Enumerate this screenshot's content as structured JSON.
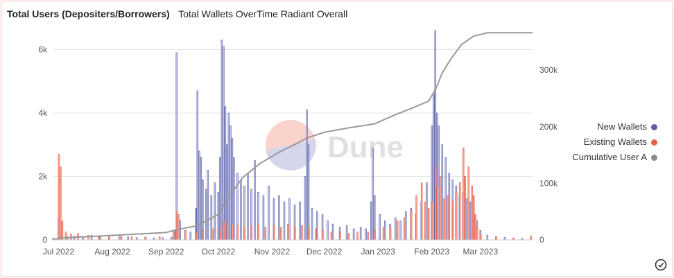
{
  "header": {
    "title": "Total Users (Depositers/Borrowers)",
    "subtitle": "Total Wallets OverTime Radiant Overall"
  },
  "watermark": "Dune",
  "colors": {
    "new_wallets": "#5a5fa8",
    "new_wallets_fill": "#c4c6e6",
    "existing_wallets": "#e8604a",
    "existing_wallets_fill": "#f5a898",
    "cumulative": "#999999",
    "grid": "#e6e6e6",
    "axis_text": "#555555"
  },
  "chart_data": {
    "type": "bar",
    "x_ticks": [
      "Jul 2022",
      "Aug 2022",
      "Sep 2022",
      "Oct 2022",
      "Nov 2022",
      "Dec 2022",
      "Jan 2023",
      "Feb 2023",
      "Mar 2023"
    ],
    "y_left_ticks": [
      "0",
      "2k",
      "4k",
      "6k"
    ],
    "y_left_range": [
      0,
      6600
    ],
    "y_right_ticks": [
      "0",
      "100k",
      "200k",
      "300k"
    ],
    "y_right_range": [
      0,
      370000
    ],
    "legend_position": "right",
    "grid": true,
    "date_range": [
      "2022-06-28",
      "2023-03-31"
    ],
    "new_wallets": [
      [
        "2022-06-28",
        60
      ],
      [
        "2022-07-01",
        700
      ],
      [
        "2022-07-03",
        120
      ],
      [
        "2022-07-06",
        100
      ],
      [
        "2022-07-10",
        120
      ],
      [
        "2022-07-15",
        90
      ],
      [
        "2022-07-20",
        150
      ],
      [
        "2022-07-25",
        90
      ],
      [
        "2022-07-30",
        80
      ],
      [
        "2022-08-05",
        110
      ],
      [
        "2022-08-10",
        90
      ],
      [
        "2022-08-15",
        70
      ],
      [
        "2022-08-20",
        80
      ],
      [
        "2022-08-25",
        60
      ],
      [
        "2022-08-30",
        70
      ],
      [
        "2022-09-04",
        80
      ],
      [
        "2022-09-06",
        300
      ],
      [
        "2022-09-07",
        5900
      ],
      [
        "2022-09-08",
        800
      ],
      [
        "2022-09-09",
        600
      ],
      [
        "2022-09-12",
        300
      ],
      [
        "2022-09-15",
        250
      ],
      [
        "2022-09-18",
        1000
      ],
      [
        "2022-09-19",
        4700
      ],
      [
        "2022-09-20",
        2800
      ],
      [
        "2022-09-21",
        2600
      ],
      [
        "2022-09-22",
        1900
      ],
      [
        "2022-09-24",
        1600
      ],
      [
        "2022-09-25",
        2200
      ],
      [
        "2022-09-27",
        1400
      ],
      [
        "2022-09-29",
        1800
      ],
      [
        "2022-10-01",
        1500
      ],
      [
        "2022-10-02",
        2600
      ],
      [
        "2022-10-03",
        6300
      ],
      [
        "2022-10-04",
        6100
      ],
      [
        "2022-10-05",
        4200
      ],
      [
        "2022-10-06",
        3000
      ],
      [
        "2022-10-07",
        4000
      ],
      [
        "2022-10-08",
        3600
      ],
      [
        "2022-10-09",
        3200
      ],
      [
        "2022-10-10",
        2600
      ],
      [
        "2022-10-12",
        2100
      ],
      [
        "2022-10-14",
        1900
      ],
      [
        "2022-10-16",
        1700
      ],
      [
        "2022-10-18",
        2100
      ],
      [
        "2022-10-20",
        1600
      ],
      [
        "2022-10-22",
        2500
      ],
      [
        "2022-10-24",
        1500
      ],
      [
        "2022-10-27",
        1400
      ],
      [
        "2022-10-30",
        1700
      ],
      [
        "2022-11-02",
        1300
      ],
      [
        "2022-11-05",
        1400
      ],
      [
        "2022-11-08",
        1200
      ],
      [
        "2022-11-11",
        1300
      ],
      [
        "2022-11-14",
        1100
      ],
      [
        "2022-11-17",
        1200
      ],
      [
        "2022-11-20",
        2000
      ],
      [
        "2022-11-21",
        4100
      ],
      [
        "2022-11-22",
        3000
      ],
      [
        "2022-11-24",
        1000
      ],
      [
        "2022-11-27",
        900
      ],
      [
        "2022-11-30",
        800
      ],
      [
        "2022-12-03",
        600
      ],
      [
        "2022-12-06",
        500
      ],
      [
        "2022-12-10",
        400
      ],
      [
        "2022-12-14",
        450
      ],
      [
        "2022-12-18",
        350
      ],
      [
        "2022-12-22",
        400
      ],
      [
        "2022-12-25",
        350
      ],
      [
        "2022-12-28",
        1200
      ],
      [
        "2022-12-29",
        2900
      ],
      [
        "2022-12-30",
        1400
      ],
      [
        "2023-01-02",
        800
      ],
      [
        "2023-01-05",
        600
      ],
      [
        "2023-01-08",
        500
      ],
      [
        "2023-01-11",
        700
      ],
      [
        "2023-01-14",
        600
      ],
      [
        "2023-01-17",
        900
      ],
      [
        "2023-01-20",
        1000
      ],
      [
        "2023-01-23",
        800
      ],
      [
        "2023-01-26",
        1200
      ],
      [
        "2023-01-29",
        1800
      ],
      [
        "2023-02-01",
        3600
      ],
      [
        "2023-02-02",
        4600
      ],
      [
        "2023-02-03",
        6600
      ],
      [
        "2023-02-04",
        4000
      ],
      [
        "2023-02-05",
        3600
      ],
      [
        "2023-02-07",
        3000
      ],
      [
        "2023-02-09",
        2600
      ],
      [
        "2023-02-11",
        2100
      ],
      [
        "2023-02-13",
        1900
      ],
      [
        "2023-02-15",
        1700
      ],
      [
        "2023-02-17",
        1400
      ],
      [
        "2023-02-19",
        1500
      ],
      [
        "2023-02-21",
        1300
      ],
      [
        "2023-02-23",
        1200
      ],
      [
        "2023-02-25",
        1100
      ],
      [
        "2023-02-27",
        600
      ],
      [
        "2023-03-01",
        300
      ],
      [
        "2023-03-05",
        150
      ],
      [
        "2023-03-10",
        100
      ],
      [
        "2023-03-15",
        80
      ],
      [
        "2023-03-20",
        60
      ],
      [
        "2023-03-25",
        50
      ],
      [
        "2023-03-30",
        40
      ]
    ],
    "existing_wallets": [
      [
        "2022-07-01",
        2700
      ],
      [
        "2022-07-02",
        2300
      ],
      [
        "2022-07-03",
        600
      ],
      [
        "2022-07-05",
        250
      ],
      [
        "2022-07-08",
        180
      ],
      [
        "2022-07-12",
        200
      ],
      [
        "2022-07-18",
        150
      ],
      [
        "2022-07-24",
        120
      ],
      [
        "2022-07-30",
        100
      ],
      [
        "2022-08-06",
        110
      ],
      [
        "2022-08-12",
        100
      ],
      [
        "2022-08-20",
        90
      ],
      [
        "2022-08-28",
        100
      ],
      [
        "2022-09-05",
        300
      ],
      [
        "2022-09-07",
        900
      ],
      [
        "2022-09-08",
        700
      ],
      [
        "2022-09-12",
        300
      ],
      [
        "2022-09-18",
        250
      ],
      [
        "2022-09-22",
        300
      ],
      [
        "2022-09-28",
        350
      ],
      [
        "2022-10-02",
        400
      ],
      [
        "2022-10-04",
        600
      ],
      [
        "2022-10-06",
        500
      ],
      [
        "2022-10-09",
        500
      ],
      [
        "2022-10-12",
        450
      ],
      [
        "2022-10-16",
        400
      ],
      [
        "2022-10-20",
        450
      ],
      [
        "2022-10-24",
        500
      ],
      [
        "2022-10-28",
        400
      ],
      [
        "2022-11-02",
        450
      ],
      [
        "2022-11-06",
        400
      ],
      [
        "2022-11-10",
        500
      ],
      [
        "2022-11-14",
        400
      ],
      [
        "2022-11-18",
        450
      ],
      [
        "2022-11-22",
        400
      ],
      [
        "2022-11-26",
        350
      ],
      [
        "2022-11-30",
        300
      ],
      [
        "2022-12-05",
        250
      ],
      [
        "2022-12-10",
        250
      ],
      [
        "2022-12-15",
        200
      ],
      [
        "2022-12-20",
        250
      ],
      [
        "2022-12-26",
        250
      ],
      [
        "2022-12-30",
        300
      ],
      [
        "2023-01-04",
        400
      ],
      [
        "2023-01-08",
        400
      ],
      [
        "2023-01-12",
        600
      ],
      [
        "2023-01-16",
        700
      ],
      [
        "2023-01-20",
        900
      ],
      [
        "2023-01-23",
        1400
      ],
      [
        "2023-01-26",
        1800
      ],
      [
        "2023-01-28",
        1200
      ],
      [
        "2023-01-30",
        1000
      ],
      [
        "2023-02-01",
        1200
      ],
      [
        "2023-02-03",
        2300
      ],
      [
        "2023-02-04",
        1700
      ],
      [
        "2023-02-06",
        2000
      ],
      [
        "2023-02-08",
        1300
      ],
      [
        "2023-02-10",
        1400
      ],
      [
        "2023-02-13",
        1200
      ],
      [
        "2023-02-15",
        1500
      ],
      [
        "2023-02-17",
        1800
      ],
      [
        "2023-02-19",
        2900
      ],
      [
        "2023-02-20",
        2000
      ],
      [
        "2023-02-22",
        2300
      ],
      [
        "2023-02-24",
        1700
      ],
      [
        "2023-02-25",
        1400
      ],
      [
        "2023-02-26",
        800
      ],
      [
        "2023-02-27",
        400
      ],
      [
        "2023-03-01",
        150
      ],
      [
        "2023-03-10",
        80
      ],
      [
        "2023-03-20",
        60
      ],
      [
        "2023-03-30",
        120
      ]
    ],
    "cumulative_user_a": [
      [
        "2022-06-28",
        0
      ],
      [
        "2022-07-01",
        3000
      ],
      [
        "2022-08-01",
        8000
      ],
      [
        "2022-09-01",
        13000
      ],
      [
        "2022-09-07",
        18000
      ],
      [
        "2022-09-19",
        25000
      ],
      [
        "2022-09-25",
        35000
      ],
      [
        "2022-10-01",
        45000
      ],
      [
        "2022-10-03",
        55000
      ],
      [
        "2022-10-08",
        80000
      ],
      [
        "2022-10-15",
        110000
      ],
      [
        "2022-10-25",
        135000
      ],
      [
        "2022-11-05",
        155000
      ],
      [
        "2022-11-15",
        170000
      ],
      [
        "2022-11-21",
        180000
      ],
      [
        "2022-12-01",
        190000
      ],
      [
        "2022-12-15",
        198000
      ],
      [
        "2022-12-30",
        205000
      ],
      [
        "2023-01-10",
        220000
      ],
      [
        "2023-01-20",
        232000
      ],
      [
        "2023-01-30",
        245000
      ],
      [
        "2023-02-03",
        265000
      ],
      [
        "2023-02-07",
        295000
      ],
      [
        "2023-02-12",
        320000
      ],
      [
        "2023-02-18",
        345000
      ],
      [
        "2023-02-25",
        360000
      ],
      [
        "2023-03-05",
        366000
      ],
      [
        "2023-03-31",
        366000
      ]
    ]
  },
  "legend": [
    {
      "label": "New Wallets",
      "color": "#5a5fa8"
    },
    {
      "label": "Existing Wallets",
      "color": "#e8604a"
    },
    {
      "label": "Cumulative User A",
      "color": "#8c8c8c"
    }
  ]
}
